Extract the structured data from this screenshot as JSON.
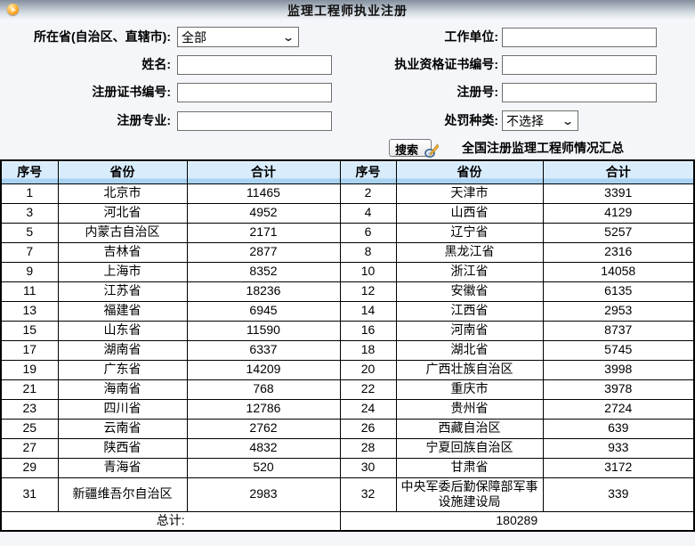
{
  "window": {
    "title": "监理工程师执业注册"
  },
  "form": {
    "province_label": "所在省(自治区、直辖市):",
    "province_value": "全部",
    "work_unit_label": "工作单位:",
    "name_label": "姓名:",
    "qualification_cert_label": "执业资格证书编号:",
    "registration_cert_label": "注册证书编号:",
    "registration_no_label": "注册号:",
    "major_label": "注册专业:",
    "penalty_label": "处罚种类:",
    "penalty_value": "不选择",
    "search_button_label": "搜索",
    "summary_link_label": "全国注册监理工程师情况汇总"
  },
  "table": {
    "headers": [
      "序号",
      "省份",
      "合计",
      "序号",
      "省份",
      "合计"
    ],
    "rows": [
      [
        "1",
        "北京市",
        "11465",
        "2",
        "天津市",
        "3391"
      ],
      [
        "3",
        "河北省",
        "4952",
        "4",
        "山西省",
        "4129"
      ],
      [
        "5",
        "内蒙古自治区",
        "2171",
        "6",
        "辽宁省",
        "5257"
      ],
      [
        "7",
        "吉林省",
        "2877",
        "8",
        "黑龙江省",
        "2316"
      ],
      [
        "9",
        "上海市",
        "8352",
        "10",
        "浙江省",
        "14058"
      ],
      [
        "11",
        "江苏省",
        "18236",
        "12",
        "安徽省",
        "6135"
      ],
      [
        "13",
        "福建省",
        "6945",
        "14",
        "江西省",
        "2953"
      ],
      [
        "15",
        "山东省",
        "11590",
        "16",
        "河南省",
        "8737"
      ],
      [
        "17",
        "湖南省",
        "6337",
        "18",
        "湖北省",
        "5745"
      ],
      [
        "19",
        "广东省",
        "14209",
        "20",
        "广西壮族自治区",
        "3998"
      ],
      [
        "21",
        "海南省",
        "768",
        "22",
        "重庆市",
        "3978"
      ],
      [
        "23",
        "四川省",
        "12786",
        "24",
        "贵州省",
        "2724"
      ],
      [
        "25",
        "云南省",
        "2762",
        "26",
        "西藏自治区",
        "639"
      ],
      [
        "27",
        "陕西省",
        "4832",
        "28",
        "宁夏回族自治区",
        "933"
      ],
      [
        "29",
        "青海省",
        "520",
        "30",
        "甘肃省",
        "3172"
      ],
      [
        "31",
        "新疆维吾尔自治区",
        "2983",
        "32",
        "中央军委后勤保障部军事设施建设局",
        "339"
      ]
    ],
    "total_label": "总计:",
    "total_value": "180289"
  },
  "colors": {
    "header_blue": "#d8ecfc",
    "header_blue_band": "#a9d3f1",
    "titlebar_top": "#848f9e",
    "icon_orange": "#f08c00",
    "table_border": "#000000"
  },
  "icons": {
    "titlebar_icon": "orange-sphere-icon",
    "search_icon": "magnifier-pencil-icon",
    "select_chevron": "chevron-down-icon"
  }
}
